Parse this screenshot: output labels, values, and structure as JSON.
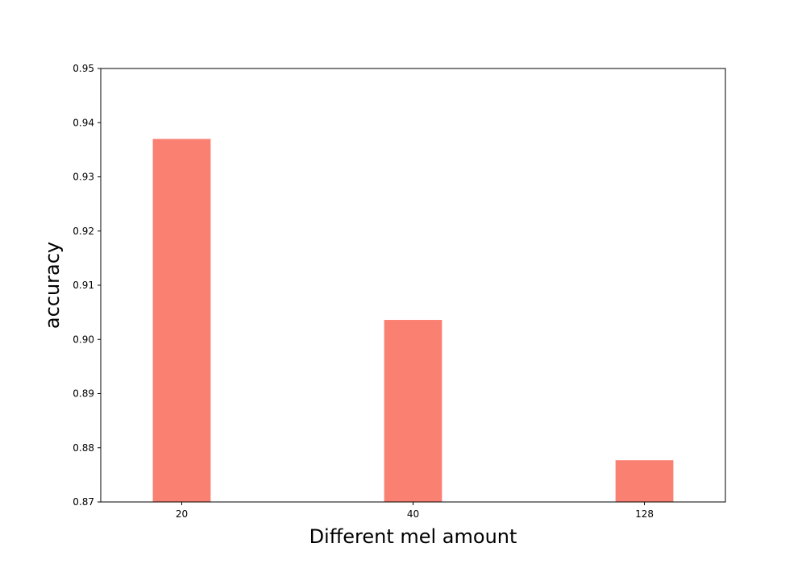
{
  "chart_data": {
    "type": "bar",
    "title": "",
    "xlabel": "Different mel amount",
    "ylabel": "accuracy",
    "categories": [
      "20",
      "40",
      "128"
    ],
    "values": [
      0.937,
      0.9036,
      0.8777
    ],
    "ylim": [
      0.87,
      0.95
    ],
    "yticks": [
      "0.87",
      "0.88",
      "0.89",
      "0.90",
      "0.91",
      "0.92",
      "0.93",
      "0.94",
      "0.95"
    ],
    "bar_color": "#fa8072",
    "grid": false,
    "legend": "none"
  }
}
